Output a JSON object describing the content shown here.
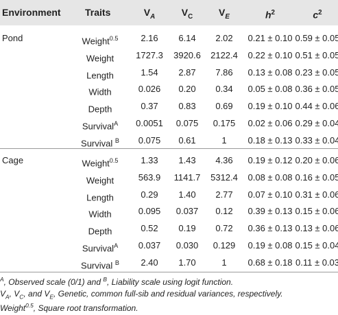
{
  "headers": {
    "environment": "Environment",
    "traits": "Traits",
    "va": {
      "base": "V",
      "sub": "A"
    },
    "vc": {
      "base": "V",
      "sub": "C"
    },
    "ve": {
      "base": "V",
      "sub": "E"
    },
    "h2": {
      "base": "h",
      "sup": "2"
    },
    "c2": {
      "base": "c",
      "sup": "2"
    }
  },
  "groups": [
    {
      "environment": "Pond",
      "rows": [
        {
          "trait": "Weight",
          "trait_sup": "0.5",
          "va": "2.16",
          "vc": "6.14",
          "ve": "2.02",
          "h2": "0.21 ± 0.10",
          "c2": "0.59 ± 0.05"
        },
        {
          "trait": "Weight",
          "trait_sup": "",
          "va": "1727.3",
          "vc": "3920.6",
          "ve": "2122.4",
          "h2": "0.22 ± 0.10",
          "c2": "0.51 ± 0.05"
        },
        {
          "trait": "Length",
          "trait_sup": "",
          "va": "1.54",
          "vc": "2.87",
          "ve": "7.86",
          "h2": "0.13 ± 0.08",
          "c2": "0.23 ± 0.05"
        },
        {
          "trait": "Width",
          "trait_sup": "",
          "va": "0.026",
          "vc": "0.20",
          "ve": "0.34",
          "h2": "0.05 ± 0.08",
          "c2": "0.36 ± 0.05"
        },
        {
          "trait": "Depth",
          "trait_sup": "",
          "va": "0.37",
          "vc": "0.83",
          "ve": "0.69",
          "h2": "0.19 ± 0.10",
          "c2": "0.44 ± 0.06"
        },
        {
          "trait": "Survival",
          "trait_sup": "A",
          "va": "0.0051",
          "vc": "0.075",
          "ve": "0.175",
          "h2": "0.02 ± 0.06",
          "c2": "0.29 ± 0.04"
        },
        {
          "trait": "Survival ",
          "trait_sup": "B",
          "va": "0.075",
          "vc": "0.61",
          "ve": "1",
          "h2": "0.18 ± 0.13",
          "c2": "0.33 ± 0.04"
        }
      ]
    },
    {
      "environment": "Cage",
      "rows": [
        {
          "trait": "Weight",
          "trait_sup": "0.5",
          "va": "1.33",
          "vc": "1.43",
          "ve": "4.36",
          "h2": "0.19 ± 0.12",
          "c2": "0.20 ± 0.06"
        },
        {
          "trait": "Weight",
          "trait_sup": "",
          "va": "563.9",
          "vc": "1141.7",
          "ve": "5312.4",
          "h2": "0.08 ± 0.08",
          "c2": "0.16 ± 0.05"
        },
        {
          "trait": "Length",
          "trait_sup": "",
          "va": "0.29",
          "vc": "1.40",
          "ve": "2.77",
          "h2": "0.07 ± 0.10",
          "c2": "0.31 ± 0.06"
        },
        {
          "trait": "Width",
          "trait_sup": "",
          "va": "0.095",
          "vc": "0.037",
          "ve": "0.12",
          "h2": "0.39 ± 0.13",
          "c2": "0.15 ± 0.06"
        },
        {
          "trait": "Depth",
          "trait_sup": "",
          "va": "0.52",
          "vc": "0.19",
          "ve": "0.72",
          "h2": "0.36 ± 0.13",
          "c2": "0.13 ± 0.06"
        },
        {
          "trait": "Survival",
          "trait_sup": "A",
          "va": "0.037",
          "vc": "0.030",
          "ve": "0.129",
          "h2": "0.19 ± 0.08",
          "c2": "0.15 ± 0.04"
        },
        {
          "trait": "Survival ",
          "trait_sup": "B",
          "va": "2.40",
          "vc": "1.70",
          "ve": "1",
          "h2": "0.68 ± 0.18",
          "c2": "0.11 ± 0.03"
        }
      ]
    }
  ],
  "footnotes": {
    "line1": {
      "sup_a": "A",
      "text_a": ", Observed scale (0/1) and ",
      "sup_b": "B",
      "text_b": ", Liability scale using logit function."
    },
    "line2": {
      "a": "V",
      "a_sub": "A",
      "sep1": ", ",
      "b": "V",
      "b_sub": "C",
      "sep2": ", and ",
      "c": "V",
      "c_sub": "E",
      "text": ", Genetic, common full-sib and residual variances, respectively."
    },
    "line3": {
      "base": "Weight",
      "sup": "0.5",
      "text": ", Square root transformation."
    }
  },
  "colors": {
    "header_bg": "#e6e6e6",
    "rule": "#9a9a9a",
    "text": "#222222"
  }
}
